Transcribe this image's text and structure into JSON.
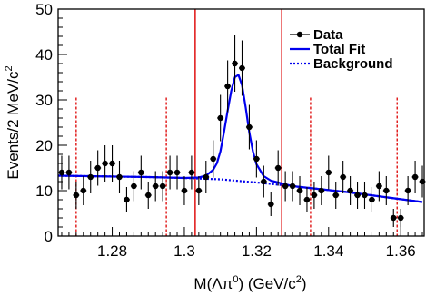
{
  "chart_data": {
    "type": "scatter",
    "xlabel_parts": {
      "pre": "M(Λπ",
      "sup1": "0",
      "mid": ") (GeV/c",
      "sup2": "2",
      "post": ")"
    },
    "ylabel_parts": {
      "pre": "Events/2 MeV/c",
      "sup": "2"
    },
    "xlim": [
      1.265,
      1.3665
    ],
    "ylim": [
      0,
      50
    ],
    "xticks": [
      1.28,
      1.3,
      1.32,
      1.34,
      1.36
    ],
    "xtick_labels": [
      "1.28",
      "1.3",
      "1.32",
      "1.34",
      "1.36"
    ],
    "yticks": [
      0,
      10,
      20,
      30,
      40,
      50
    ],
    "ytick_labels": [
      "0",
      "10",
      "20",
      "30",
      "40",
      "50"
    ],
    "legend": {
      "position": "top-right",
      "entries": [
        {
          "label": "Data",
          "style": "marker-with-errorbar",
          "color": "#000000"
        },
        {
          "label": "Total Fit",
          "style": "solid",
          "color": "#0000ee"
        },
        {
          "label": "Background",
          "style": "dotted",
          "color": "#0000ee"
        }
      ]
    },
    "series": [
      {
        "name": "Data",
        "x": [
          1.266,
          1.268,
          1.27,
          1.272,
          1.274,
          1.276,
          1.278,
          1.28,
          1.282,
          1.284,
          1.286,
          1.288,
          1.29,
          1.292,
          1.294,
          1.296,
          1.298,
          1.3,
          1.302,
          1.304,
          1.306,
          1.308,
          1.31,
          1.312,
          1.314,
          1.316,
          1.318,
          1.32,
          1.322,
          1.324,
          1.326,
          1.328,
          1.33,
          1.332,
          1.334,
          1.336,
          1.338,
          1.34,
          1.342,
          1.344,
          1.346,
          1.348,
          1.35,
          1.352,
          1.354,
          1.356,
          1.358,
          1.36,
          1.362,
          1.364,
          1.366
        ],
        "y": [
          14,
          14,
          9,
          10,
          13,
          15,
          16,
          16,
          13,
          8,
          11,
          14,
          9,
          11,
          11,
          14,
          14,
          10,
          14,
          10,
          13,
          17,
          26,
          33,
          38,
          37,
          24,
          17,
          12,
          7,
          15,
          11,
          11,
          10,
          8,
          9,
          10,
          14,
          9,
          13,
          10,
          9,
          9,
          8,
          11,
          10,
          4,
          4,
          10,
          13,
          12
        ],
        "err": [
          3.7,
          3.7,
          3.0,
          3.2,
          3.6,
          3.9,
          4.0,
          4.0,
          3.6,
          2.8,
          3.3,
          3.7,
          3.0,
          3.3,
          3.3,
          3.7,
          3.7,
          3.2,
          3.7,
          3.2,
          3.6,
          4.1,
          5.1,
          5.7,
          6.2,
          6.1,
          4.9,
          4.1,
          3.5,
          2.6,
          3.9,
          3.3,
          3.3,
          3.2,
          2.8,
          3.0,
          3.2,
          3.7,
          3.0,
          3.6,
          3.2,
          3.0,
          3.0,
          2.8,
          3.3,
          3.2,
          2.0,
          2.0,
          3.2,
          3.6,
          3.5
        ],
        "color": "#000000"
      },
      {
        "name": "Total Fit",
        "style": "solid",
        "color": "#0000ee",
        "x": [
          1.265,
          1.29,
          1.3,
          1.304,
          1.306,
          1.308,
          1.309,
          1.31,
          1.311,
          1.312,
          1.313,
          1.314,
          1.315,
          1.316,
          1.317,
          1.318,
          1.319,
          1.32,
          1.322,
          1.324,
          1.33,
          1.345,
          1.366
        ],
        "y": [
          13.3,
          13.0,
          12.8,
          12.9,
          13.3,
          14.6,
          16.0,
          18.7,
          22.9,
          27.6,
          32.0,
          35.0,
          35.5,
          33.2,
          28.3,
          22.9,
          18.7,
          15.8,
          13.2,
          12.2,
          11.0,
          9.7,
          7.5
        ]
      },
      {
        "name": "Background",
        "style": "dotted",
        "color": "#0000ee",
        "x": [
          1.265,
          1.29,
          1.3,
          1.31,
          1.32,
          1.33,
          1.345,
          1.366
        ],
        "y": [
          13.3,
          13.0,
          12.8,
          12.5,
          11.8,
          11.0,
          9.7,
          7.5
        ]
      }
    ],
    "annotations": {
      "signal_window_lines": {
        "x": [
          1.303,
          1.327
        ],
        "color": "#dd0000",
        "style": "solid"
      },
      "sideband_lines": {
        "x": [
          1.27,
          1.295,
          1.335,
          1.359
        ],
        "color": "#dd0000",
        "style": "dotted"
      }
    }
  }
}
